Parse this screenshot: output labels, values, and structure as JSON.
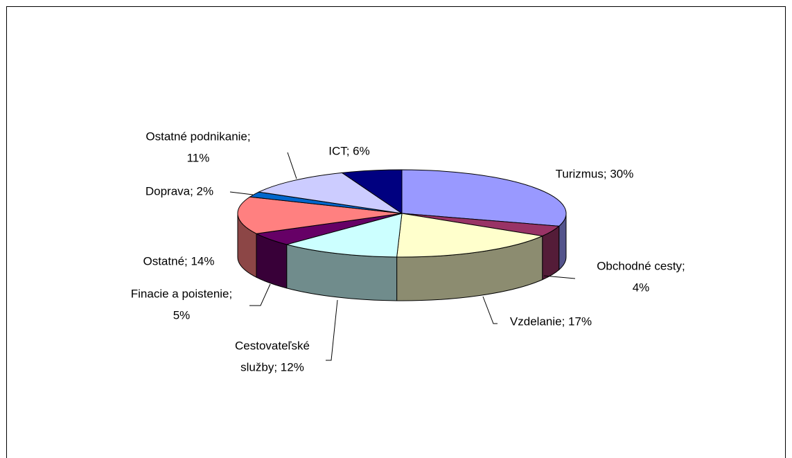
{
  "chart_data": {
    "type": "pie3d",
    "values": [
      30,
      4,
      17,
      12,
      5,
      14,
      2,
      11,
      6
    ],
    "value_labels": [
      [
        "Turizmus; 30%"
      ],
      [
        "Obchodné cesty;",
        "4%"
      ],
      [
        "Vzdelanie; 17%"
      ],
      [
        "Cestovateľské",
        "služby; 12%"
      ],
      [
        "Finacie a poistenie;",
        "5%"
      ],
      [
        "Ostatné; 14%"
      ],
      [
        "Doprava; 2%"
      ],
      [
        "Ostatné podnikanie;",
        "11%"
      ],
      [
        "ICT; 6%"
      ]
    ],
    "colors": [
      "#9999ff",
      "#993366",
      "#ffffcc",
      "#ccffff",
      "#660066",
      "#ff8080",
      "#0066cc",
      "#ccccff",
      "#000080"
    ]
  }
}
